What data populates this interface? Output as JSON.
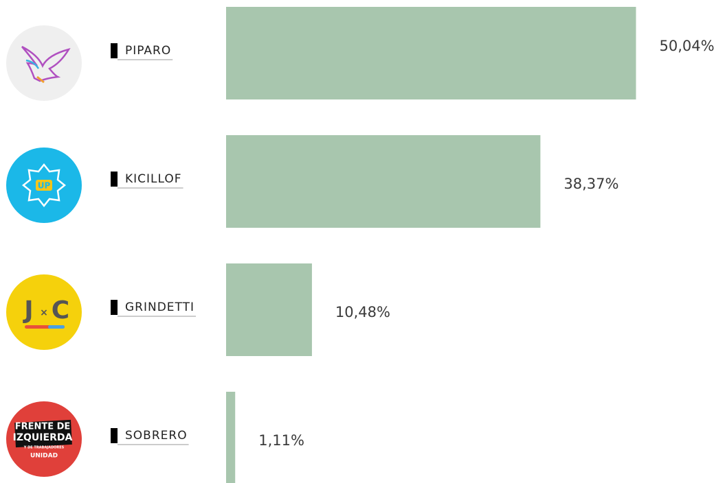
{
  "chart_data": {
    "type": "bar",
    "categories": [
      "PIPARO",
      "KICILLOF",
      "GRINDETTI",
      "SOBRERO"
    ],
    "values": [
      50.04,
      38.37,
      10.48,
      1.11
    ],
    "value_labels": [
      "50,04%",
      "38,37%",
      "10,48%",
      "1,11%"
    ],
    "color": "#a8c6ae"
  },
  "logos": [
    [],
    [
      "UP"
    ],
    [
      "J",
      "×",
      "C"
    ],
    [
      "FRENTE DE",
      "IZQUIERDA",
      "Y DE TRABAJADORES",
      "UNIDAD"
    ]
  ]
}
